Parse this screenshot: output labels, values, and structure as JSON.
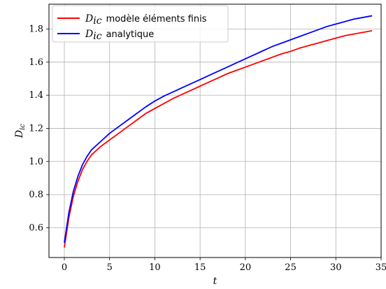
{
  "chart_data": {
    "type": "line",
    "xlabel": "t",
    "ylabel": "D_ic",
    "ylabel_base": "D",
    "ylabel_sub": "ic",
    "xlim": [
      -1.7,
      35
    ],
    "ylim": [
      0.42,
      1.95
    ],
    "x_ticks": [
      0,
      5,
      10,
      15,
      20,
      25,
      30,
      35
    ],
    "x_tick_labels": [
      "0",
      "5",
      "10",
      "15",
      "20",
      "25",
      "30",
      "35"
    ],
    "y_ticks": [
      0.6,
      0.8,
      1.0,
      1.2,
      1.4,
      1.6,
      1.8
    ],
    "y_tick_labels": [
      "0.6",
      "0.8",
      "1.0",
      "1.2",
      "1.4",
      "1.6",
      "1.8"
    ],
    "grid": true,
    "legend_position": "top-left",
    "series": [
      {
        "name": "D_ic modèle éléments finis",
        "legend_base": "D",
        "legend_sub": "ic",
        "legend_text": "modèle éléments finis",
        "color": "#ff0000",
        "x": [
          0,
          0.5,
          1,
          1.5,
          2,
          2.5,
          3,
          4,
          5,
          6,
          7,
          8,
          9,
          10,
          11,
          12,
          13,
          14,
          15,
          16,
          17,
          18,
          19,
          20,
          21,
          22,
          23,
          24,
          25,
          26,
          27,
          28,
          29,
          30,
          31,
          32,
          33,
          34
        ],
        "y": [
          0.48,
          0.66,
          0.79,
          0.88,
          0.95,
          1.0,
          1.04,
          1.09,
          1.13,
          1.17,
          1.21,
          1.25,
          1.29,
          1.32,
          1.35,
          1.38,
          1.405,
          1.43,
          1.455,
          1.48,
          1.505,
          1.53,
          1.55,
          1.57,
          1.59,
          1.61,
          1.63,
          1.65,
          1.665,
          1.685,
          1.7,
          1.715,
          1.73,
          1.745,
          1.76,
          1.77,
          1.78,
          1.79
        ]
      },
      {
        "name": "D_ic analytique",
        "legend_base": "D",
        "legend_sub": "ic",
        "legend_text": "analytique",
        "color": "#0000ff",
        "x": [
          0,
          0.5,
          1,
          1.5,
          2,
          2.5,
          3,
          4,
          5,
          6,
          7,
          8,
          9,
          10,
          11,
          12,
          13,
          14,
          15,
          16,
          17,
          18,
          19,
          20,
          21,
          22,
          23,
          24,
          25,
          26,
          27,
          28,
          29,
          30,
          31,
          32,
          33,
          34
        ],
        "y": [
          0.51,
          0.69,
          0.82,
          0.91,
          0.98,
          1.03,
          1.07,
          1.12,
          1.17,
          1.21,
          1.25,
          1.29,
          1.33,
          1.365,
          1.395,
          1.42,
          1.445,
          1.47,
          1.495,
          1.52,
          1.545,
          1.57,
          1.595,
          1.62,
          1.645,
          1.67,
          1.695,
          1.715,
          1.735,
          1.755,
          1.775,
          1.795,
          1.815,
          1.83,
          1.845,
          1.86,
          1.87,
          1.88
        ]
      }
    ]
  }
}
